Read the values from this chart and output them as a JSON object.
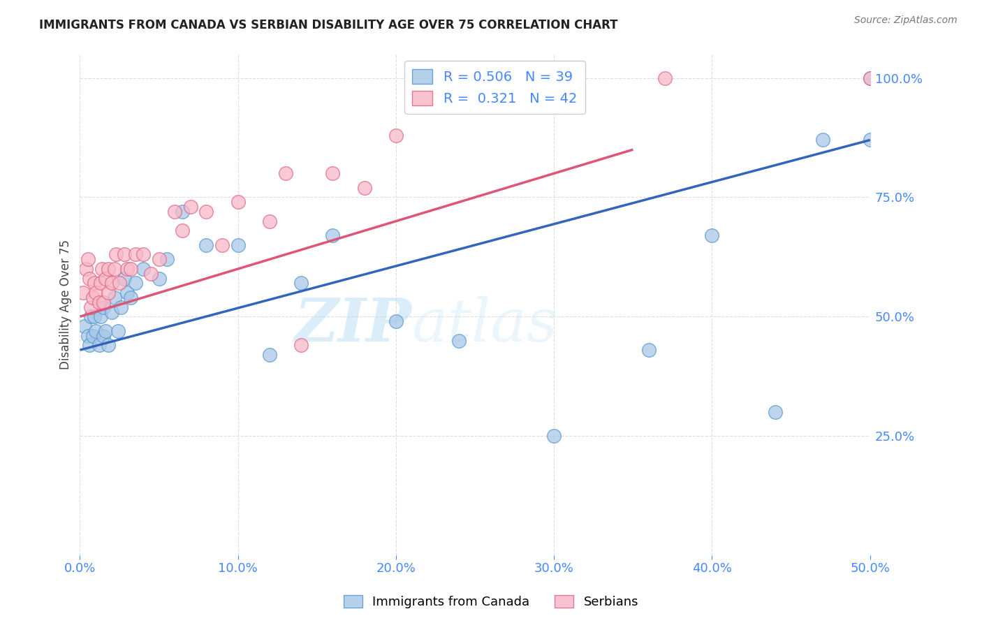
{
  "title": "IMMIGRANTS FROM CANADA VS SERBIAN DISABILITY AGE OVER 75 CORRELATION CHART",
  "source": "Source: ZipAtlas.com",
  "ylabel_label": "Disability Age Over 75",
  "xlabel_label_canada": "Immigrants from Canada",
  "xlabel_label_serbians": "Serbians",
  "watermark_zip": "ZIP",
  "watermark_atlas": "atlas",
  "legend_blue_R": "0.506",
  "legend_blue_N": "39",
  "legend_pink_R": "0.321",
  "legend_pink_N": "42",
  "xmin": 0.0,
  "xmax": 0.5,
  "ymin": 0.0,
  "ymax": 1.05,
  "blue_line_x0": 0.0,
  "blue_line_y0": 0.43,
  "blue_line_x1": 0.5,
  "blue_line_y1": 0.87,
  "pink_line_x0": 0.0,
  "pink_line_y0": 0.5,
  "pink_line_x1": 0.35,
  "pink_line_y1": 0.85,
  "blue_scatter_x": [
    0.003,
    0.005,
    0.006,
    0.007,
    0.008,
    0.009,
    0.01,
    0.012,
    0.013,
    0.015,
    0.015,
    0.016,
    0.018,
    0.02,
    0.022,
    0.024,
    0.026,
    0.028,
    0.03,
    0.032,
    0.035,
    0.04,
    0.05,
    0.055,
    0.065,
    0.08,
    0.1,
    0.12,
    0.14,
    0.16,
    0.2,
    0.24,
    0.3,
    0.36,
    0.4,
    0.44,
    0.47,
    0.5,
    0.5
  ],
  "blue_scatter_y": [
    0.48,
    0.46,
    0.44,
    0.5,
    0.46,
    0.5,
    0.47,
    0.44,
    0.5,
    0.52,
    0.46,
    0.47,
    0.44,
    0.51,
    0.54,
    0.47,
    0.52,
    0.58,
    0.55,
    0.54,
    0.57,
    0.6,
    0.58,
    0.62,
    0.72,
    0.65,
    0.65,
    0.42,
    0.57,
    0.67,
    0.49,
    0.45,
    0.25,
    0.43,
    0.67,
    0.3,
    0.87,
    1.0,
    0.87
  ],
  "pink_scatter_x": [
    0.002,
    0.004,
    0.005,
    0.006,
    0.007,
    0.008,
    0.009,
    0.01,
    0.012,
    0.013,
    0.014,
    0.015,
    0.016,
    0.018,
    0.018,
    0.02,
    0.022,
    0.023,
    0.025,
    0.028,
    0.03,
    0.032,
    0.035,
    0.04,
    0.045,
    0.05,
    0.06,
    0.065,
    0.07,
    0.08,
    0.09,
    0.1,
    0.12,
    0.13,
    0.14,
    0.16,
    0.18,
    0.2,
    0.22,
    0.3,
    0.37,
    0.5
  ],
  "pink_scatter_y": [
    0.55,
    0.6,
    0.62,
    0.58,
    0.52,
    0.54,
    0.57,
    0.55,
    0.53,
    0.57,
    0.6,
    0.53,
    0.58,
    0.55,
    0.6,
    0.57,
    0.6,
    0.63,
    0.57,
    0.63,
    0.6,
    0.6,
    0.63,
    0.63,
    0.59,
    0.62,
    0.72,
    0.68,
    0.73,
    0.72,
    0.65,
    0.74,
    0.7,
    0.8,
    0.44,
    0.8,
    0.77,
    0.88,
    1.0,
    1.0,
    1.0,
    1.0
  ],
  "bg_color": "#ffffff",
  "blue_color": "#a8c8e8",
  "blue_edge_color": "#5599cc",
  "pink_color": "#f8b8c8",
  "pink_edge_color": "#dd6688",
  "blue_line_color": "#3366bb",
  "pink_line_color": "#dd5577",
  "grid_color": "#dddddd",
  "title_color": "#222222",
  "tick_color": "#4488ff"
}
